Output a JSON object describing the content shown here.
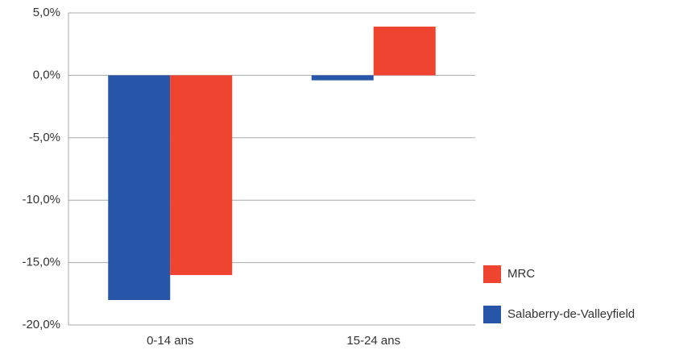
{
  "chart_data": {
    "type": "bar",
    "categories": [
      "0-14 ans",
      "15-24 ans"
    ],
    "series": [
      {
        "name": "Salaberry-de-Valleyfield",
        "color": "#2755a8",
        "values": [
          -18,
          -0.4
        ]
      },
      {
        "name": "MRC",
        "color": "#ee4430",
        "values": [
          -16,
          3.9
        ]
      }
    ],
    "ylim": [
      -20,
      5
    ],
    "yticks": [
      {
        "value": -20,
        "label": "-20,0%"
      },
      {
        "value": -15,
        "label": "-15,0%"
      },
      {
        "value": -10,
        "label": "-10,0%"
      },
      {
        "value": -5,
        "label": "-5,0%"
      },
      {
        "value": 0,
        "label": "0,0%"
      },
      {
        "value": 5,
        "label": "5,0%"
      }
    ],
    "grid": true,
    "legend": "right"
  }
}
